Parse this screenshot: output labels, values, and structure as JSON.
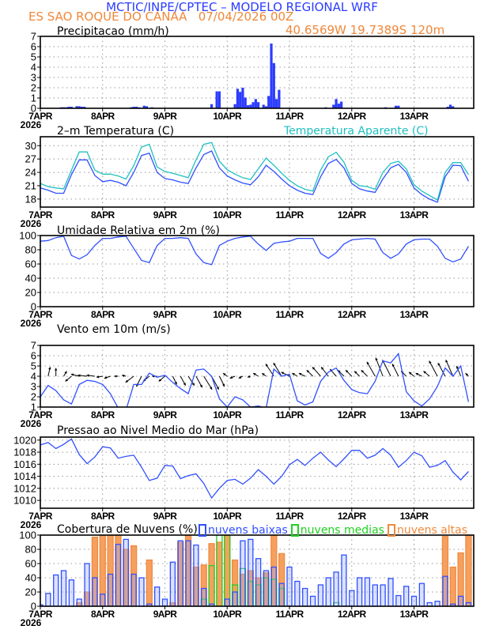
{
  "header": {
    "title": "MCTIC/INPE/CPTEC – MODELO REGIONAL WRF",
    "location_line": "ES SAO ROQUE DO CANAA   07/04/2026 00Z",
    "coords": "40.6569W 19.7389S 120m"
  },
  "colors": {
    "title": "#2b3cff",
    "location": "#f0883a",
    "temperature": "#3050ff",
    "apparent": "#20c0c0",
    "low": "#3050ff",
    "mid": "#20d020",
    "high": "#f08a3c"
  },
  "chart_data": {
    "xlim": [
      "2026-04-07 00Z",
      "2026-04-13 23Z"
    ],
    "xtick_labels": [
      "7APR",
      "8APR",
      "9APR",
      "10APR",
      "11APR",
      "12APR",
      "13APR"
    ],
    "year_label": "2026",
    "x_times": [
      "2026-04-07 00Z",
      "2026-04-07 03Z",
      "2026-04-07 06Z",
      "2026-04-07 09Z",
      "2026-04-07 12Z",
      "2026-04-07 15Z",
      "2026-04-07 18Z",
      "2026-04-07 21Z",
      "2026-04-08 00Z",
      "2026-04-08 03Z",
      "2026-04-08 06Z",
      "2026-04-08 09Z",
      "2026-04-08 12Z",
      "2026-04-08 15Z",
      "2026-04-08 18Z",
      "2026-04-08 21Z",
      "2026-04-09 00Z",
      "2026-04-09 03Z",
      "2026-04-09 06Z",
      "2026-04-09 09Z",
      "2026-04-09 12Z",
      "2026-04-09 15Z",
      "2026-04-09 18Z",
      "2026-04-09 21Z",
      "2026-04-10 00Z",
      "2026-04-10 03Z",
      "2026-04-10 06Z",
      "2026-04-10 09Z",
      "2026-04-10 12Z",
      "2026-04-10 15Z",
      "2026-04-10 18Z",
      "2026-04-10 21Z",
      "2026-04-11 00Z",
      "2026-04-11 03Z",
      "2026-04-11 06Z",
      "2026-04-11 09Z",
      "2026-04-11 12Z",
      "2026-04-11 15Z",
      "2026-04-11 18Z",
      "2026-04-11 21Z",
      "2026-04-12 00Z",
      "2026-04-12 03Z",
      "2026-04-12 06Z",
      "2026-04-12 09Z",
      "2026-04-12 12Z",
      "2026-04-12 15Z",
      "2026-04-12 18Z",
      "2026-04-12 21Z",
      "2026-04-13 00Z",
      "2026-04-13 03Z",
      "2026-04-13 06Z",
      "2026-04-13 09Z",
      "2026-04-13 12Z",
      "2026-04-13 15Z",
      "2026-04-13 18Z",
      "2026-04-13 21Z"
    ],
    "panels": [
      {
        "id": "precip",
        "type": "bar",
        "title": "Precipitacao (mm/h)",
        "ylim": [
          0,
          7
        ],
        "yticks": [
          0,
          1,
          2,
          3,
          4,
          5,
          6,
          7
        ],
        "grid": true,
        "bars": [
          [
            "2026-04-07 08Z",
            0.1
          ],
          [
            "2026-04-07 09Z",
            0.1
          ],
          [
            "2026-04-07 10Z",
            0.1
          ],
          [
            "2026-04-07 11Z",
            0.15
          ],
          [
            "2026-04-07 12Z",
            0.15
          ],
          [
            "2026-04-07 14Z",
            0.2
          ],
          [
            "2026-04-07 15Z",
            0.2
          ],
          [
            "2026-04-07 16Z",
            0.15
          ],
          [
            "2026-04-07 17Z",
            0.15
          ],
          [
            "2026-04-08 11Z",
            0.1
          ],
          [
            "2026-04-08 12Z",
            0.15
          ],
          [
            "2026-04-08 13Z",
            0.15
          ],
          [
            "2026-04-08 14Z",
            0.1
          ],
          [
            "2026-04-08 16Z",
            0.25
          ],
          [
            "2026-04-08 17Z",
            0.2
          ],
          [
            "2026-04-08 19Z",
            0.1
          ],
          [
            "2026-04-09 18Z",
            0.4
          ],
          [
            "2026-04-09 20Z",
            1.65
          ],
          [
            "2026-04-09 21Z",
            1.65
          ],
          [
            "2026-04-10 03Z",
            0.4
          ],
          [
            "2026-04-10 04Z",
            1.9
          ],
          [
            "2026-04-10 05Z",
            1.6
          ],
          [
            "2026-04-10 06Z",
            2.0
          ],
          [
            "2026-04-10 07Z",
            1.05
          ],
          [
            "2026-04-10 08Z",
            0.3
          ],
          [
            "2026-04-10 09Z",
            0.35
          ],
          [
            "2026-04-10 10Z",
            0.6
          ],
          [
            "2026-04-10 11Z",
            0.9
          ],
          [
            "2026-04-10 12Z",
            0.6
          ],
          [
            "2026-04-10 14Z",
            0.35
          ],
          [
            "2026-04-10 15Z",
            0.2
          ],
          [
            "2026-04-10 16Z",
            1.2
          ],
          [
            "2026-04-10 17Z",
            6.3
          ],
          [
            "2026-04-10 18Z",
            4.4
          ],
          [
            "2026-04-10 19Z",
            0.9
          ],
          [
            "2026-04-10 20Z",
            1.8
          ],
          [
            "2026-04-11 14Z",
            0.1
          ],
          [
            "2026-04-11 17Z",
            0.35
          ],
          [
            "2026-04-11 18Z",
            0.9
          ],
          [
            "2026-04-11 19Z",
            0.45
          ],
          [
            "2026-04-11 20Z",
            0.65
          ],
          [
            "2026-04-12 13Z",
            0.1
          ],
          [
            "2026-04-12 17Z",
            0.25
          ],
          [
            "2026-04-12 18Z",
            0.25
          ],
          [
            "2026-04-13 13Z",
            0.15
          ],
          [
            "2026-04-13 14Z",
            0.35
          ],
          [
            "2026-04-13 15Z",
            0.2
          ]
        ]
      },
      {
        "id": "temp",
        "type": "line",
        "title": "2–m Temperatura (C)",
        "ylim": [
          16.2,
          32
        ],
        "yticks": [
          18,
          21,
          24,
          27,
          30
        ],
        "grid": true,
        "series": [
          {
            "name": "2-m Temperatura (C)",
            "color": "#3050ff",
            "values": [
              20.5,
              20.0,
              19.3,
              19.3,
              23.5,
              26.8,
              26.8,
              23.3,
              21.9,
              22.2,
              21.8,
              21.0,
              24.0,
              27.8,
              28.3,
              24.0,
              22.6,
              22.3,
              21.8,
              21.5,
              25.0,
              28.0,
              28.8,
              25.0,
              23.2,
              22.3,
              21.6,
              21.2,
              23.0,
              25.6,
              24.2,
              22.5,
              21.0,
              20.0,
              19.3,
              19.0,
              23.0,
              26.0,
              26.9,
              25.0,
              21.5,
              20.3,
              19.8,
              19.5,
              22.5,
              25.0,
              25.8,
              24.0,
              20.5,
              19.0,
              18.0,
              17.3,
              23.0,
              25.6,
              25.5,
              22.0
            ]
          },
          {
            "name": "Temperatura Aparente (C)",
            "color": "#20c0c0",
            "values": [
              21.5,
              20.8,
              20.5,
              20.3,
              24.5,
              28.6,
              28.6,
              24.5,
              23.6,
              23.6,
              23.2,
              22.5,
              25.5,
              29.7,
              30.3,
              25.2,
              24.2,
              23.8,
              23.3,
              22.8,
              26.8,
              30.3,
              30.7,
              26.5,
              24.6,
              23.6,
              22.8,
              22.4,
              24.8,
              27.2,
              25.6,
              23.8,
              22.2,
              21.0,
              20.2,
              19.8,
              24.5,
              27.5,
              28.5,
              26.3,
              22.2,
              21.0,
              20.8,
              20.2,
              24.0,
              26.0,
              26.5,
              24.8,
              21.2,
              19.8,
              18.8,
              17.8,
              24.0,
              26.2,
              26.2,
              23.5
            ]
          }
        ]
      },
      {
        "id": "rh",
        "type": "line",
        "title": "Umidade Relativa em 2m (%)",
        "ylim": [
          0,
          100
        ],
        "yticks": [
          0,
          20,
          40,
          60,
          80,
          100
        ],
        "grid": true,
        "series": [
          {
            "color": "#3050ff",
            "values": [
              92,
              93,
              97,
              99,
              72,
              67,
              73,
              86,
              96,
              96,
              98,
              99,
              82,
              65,
              62,
              86,
              96,
              96,
              97,
              96,
              74,
              62,
              59,
              86,
              92,
              96,
              98,
              99,
              88,
              79,
              89,
              91,
              92,
              96,
              96,
              96,
              75,
              68,
              76,
              88,
              94,
              95,
              96,
              95,
              76,
              68,
              74,
              88,
              94,
              95,
              95,
              85,
              68,
              63,
              67,
              85
            ]
          }
        ]
      },
      {
        "id": "wind",
        "type": "line",
        "title": "Vento em 10m (m/s)",
        "ylim": [
          1,
          7
        ],
        "yticks": [
          1,
          2,
          3,
          4,
          5,
          6,
          7
        ],
        "grid": true,
        "vector_baseline": 4,
        "series": [
          {
            "color": "#3050ff",
            "values": [
              2.0,
              3.1,
              2.6,
              1.7,
              1.3,
              3.2,
              3.6,
              3.5,
              3.2,
              2.3,
              0.9,
              0.7,
              3.2,
              3.2,
              4.3,
              3.9,
              4.1,
              3.4,
              2.8,
              2.3,
              4.6,
              4.7,
              4.0,
              1.8,
              1.0,
              2.0,
              1.7,
              1.0,
              1.1,
              0.9,
              4.7,
              4.0,
              4.2,
              1.6,
              1.2,
              1.5,
              3.5,
              4.4,
              4.8,
              3.6,
              2.7,
              2.4,
              2.3,
              3.5,
              5.5,
              5.3,
              6.2,
              2.5,
              1.6,
              1.1,
              1.8,
              3.0,
              4.8,
              4.0,
              5.0,
              1.5
            ]
          }
        ],
        "vectors": {
          "u": [
            -0.3,
            0.2,
            0,
            0.3,
            -0.6,
            -0.8,
            -0.9,
            -0.8,
            -0.6,
            -0.6,
            -0.4,
            -0.4,
            -0.8,
            -0.5,
            -0.6,
            -0.5,
            -0.6,
            0.4,
            0.5,
            0.6,
            0.6,
            0.8,
            0.7,
            0.5,
            -0.4,
            -0.5,
            -0.4,
            -0.3,
            -0.5,
            -0.4,
            -0.8,
            -0.8,
            -0.8,
            -0.5,
            -0.6,
            -0.6,
            -0.8,
            -0.7,
            -0.6,
            -0.6,
            -0.6,
            -0.5,
            -0.6,
            -0.8,
            -0.7,
            -0.8,
            -0.6,
            -0.5,
            -0.5,
            -0.6,
            -0.6,
            -0.8,
            -0.7,
            -0.7,
            -0.4,
            -0.3
          ],
          "v": [
            1.0,
            0.9,
            0.8,
            0.5,
            -0.5,
            0.2,
            0.1,
            0.1,
            -0.1,
            -0.2,
            0,
            0.1,
            -0.6,
            -1.0,
            -0.5,
            0,
            -0.5,
            -0.8,
            -0.9,
            -0.9,
            -1.1,
            -1.3,
            -1.3,
            -1.0,
            0.3,
            -0.2,
            -0.2,
            -0.1,
            0.3,
            0.3,
            1.2,
            1.3,
            0.4,
            0.3,
            0.3,
            0.6,
            0.9,
            0.9,
            0.7,
            0.6,
            0.6,
            0.5,
            0.6,
            1.4,
            1.8,
            1.6,
            1.2,
            0.5,
            0.4,
            0.3,
            0.5,
            1.5,
            1.3,
            1.6,
            1.0,
            0.3
          ]
        }
      },
      {
        "id": "pressure",
        "type": "line",
        "title": "Pressao ao Nivel Medio do Mar (hPa)",
        "ylim": [
          1008.7,
          1020.5
        ],
        "yticks": [
          1010,
          1012,
          1014,
          1016,
          1018,
          1020
        ],
        "grid": true,
        "series": [
          {
            "color": "#3050ff",
            "values": [
              1019.2,
              1019.6,
              1018.6,
              1019.3,
              1020.2,
              1017.6,
              1016.1,
              1017.2,
              1018.9,
              1018.7,
              1017.0,
              1017.3,
              1017.5,
              1015.5,
              1013.3,
              1013.7,
              1015.8,
              1015.7,
              1013.6,
              1014.1,
              1014.4,
              1012.8,
              1010.4,
              1012.0,
              1013.3,
              1013.5,
              1012.7,
              1013.7,
              1015.1,
              1014.0,
              1012.7,
              1014.0,
              1015.9,
              1016.8,
              1015.8,
              1017.0,
              1018.0,
              1016.7,
              1015.6,
              1016.9,
              1018.3,
              1018.3,
              1017.0,
              1017.5,
              1018.6,
              1017.5,
              1015.5,
              1016.6,
              1018.0,
              1017.4,
              1015.5,
              1015.8,
              1016.6,
              1014.7,
              1013.4,
              1014.8
            ]
          }
        ]
      },
      {
        "id": "clouds",
        "type": "bar",
        "title": "Cobertura de Nuvens (%)",
        "ylim": [
          0,
          100
        ],
        "yticks": [
          0,
          20,
          40,
          60,
          80,
          100
        ],
        "grid": true,
        "series": [
          {
            "name": "nuvens altas",
            "color": "#f08a3c",
            "values": [
              0,
              0,
              0,
              0,
              0,
              5,
              20,
              97,
              100,
              100,
              100,
              80,
              85,
              0,
              65,
              0,
              0,
              5,
              90,
              100,
              55,
              58,
              88,
              90,
              100,
              65,
              45,
              50,
              40,
              47,
              100,
              74,
              0,
              0,
              0,
              0,
              0,
              0,
              0,
              0,
              0,
              0,
              0,
              0,
              0,
              0,
              0,
              0,
              0,
              0,
              0,
              0,
              98,
              55,
              75,
              100
            ]
          },
          {
            "name": "nuvens medias",
            "color": "#20d020",
            "values": [
              0,
              0,
              0,
              0,
              0,
              0,
              0,
              0,
              0,
              0,
              0,
              0,
              0,
              0,
              0,
              0,
              0,
              0,
              0,
              0,
              0,
              10,
              57,
              100,
              100,
              30,
              53,
              35,
              30,
              40,
              38,
              25,
              0,
              0,
              0,
              0,
              0,
              0,
              5,
              0,
              0,
              0,
              0,
              0,
              0,
              0,
              0,
              0,
              0,
              0,
              0,
              0,
              0,
              0,
              0,
              0
            ]
          },
          {
            "name": "nuvens baixas",
            "color": "#3050ff",
            "values": [
              2,
              18,
              44,
              50,
              37,
              10,
              60,
              40,
              17,
              45,
              87,
              94,
              45,
              40,
              3,
              27,
              10,
              62,
              92,
              92,
              86,
              25,
              3,
              0,
              10,
              20,
              92,
              94,
              67,
              50,
              55,
              32,
              55,
              35,
              25,
              14,
              30,
              40,
              48,
              72,
              22,
              40,
              40,
              30,
              30,
              39,
              15,
              28,
              14,
              32,
              5,
              7,
              42,
              3,
              14,
              5
            ]
          }
        ]
      }
    ]
  }
}
